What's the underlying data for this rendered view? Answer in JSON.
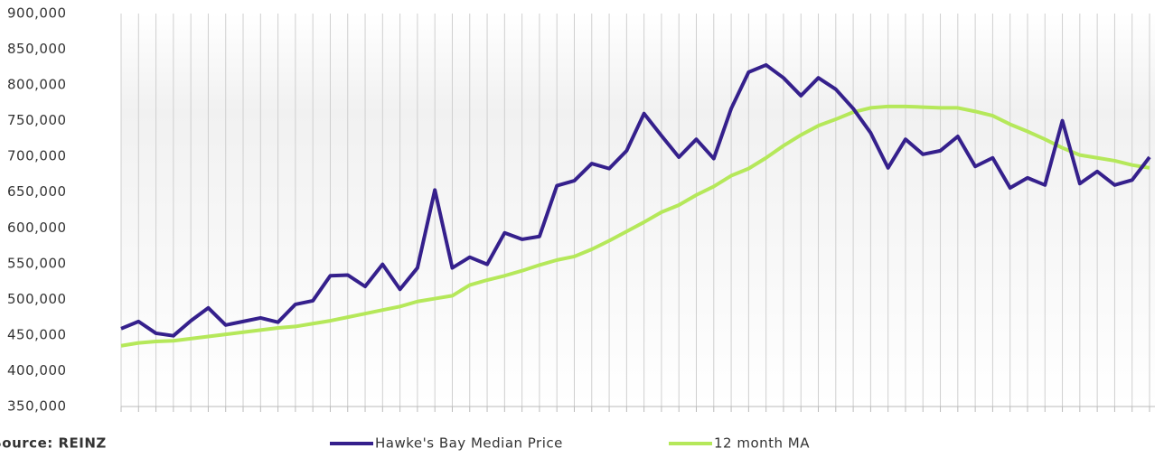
{
  "chart_data": {
    "type": "line",
    "categories": [
      null,
      null,
      null,
      null,
      null,
      null,
      null,
      null,
      null,
      null,
      null,
      null,
      null,
      null,
      null,
      null,
      null,
      null,
      null,
      null,
      null,
      null,
      null,
      null,
      null,
      null,
      null,
      null,
      null,
      null,
      null,
      null,
      null,
      null,
      null,
      null,
      null,
      null,
      null,
      null,
      null,
      null,
      null,
      null,
      null,
      null,
      null,
      null,
      null,
      null,
      null,
      null,
      null,
      null,
      null,
      null,
      null,
      null,
      null,
      null
    ],
    "series": [
      {
        "name": "Hawke's Bay Median Price",
        "color": "#35208c",
        "values": [
          459000,
          469000,
          452500,
          449000,
          470000,
          488000,
          464000,
          469000,
          474000,
          468000,
          493000,
          498000,
          533000,
          534000,
          518000,
          549000,
          514000,
          544000,
          653000,
          544000,
          559000,
          549000,
          593000,
          584000,
          588000,
          659000,
          666000,
          690000,
          683000,
          708000,
          760000,
          729000,
          699000,
          724000,
          697000,
          767000,
          818000,
          828000,
          810000,
          785000,
          810000,
          794000,
          767000,
          733000,
          684000,
          724000,
          703000,
          708000,
          728000,
          686000,
          698000,
          656000,
          670000,
          660000,
          750000,
          662000,
          679000,
          660000,
          667000,
          699000
        ]
      },
      {
        "name": "12 month MA",
        "color": "#b5e85a",
        "values": [
          435000,
          439000,
          441000,
          442000,
          445000,
          448000,
          451000,
          454000,
          457000,
          460000,
          462000,
          466000,
          470000,
          475000,
          480000,
          485000,
          490000,
          497000,
          501000,
          505000,
          520000,
          527000,
          533000,
          540000,
          548000,
          555000,
          560000,
          570000,
          582000,
          595000,
          608000,
          622000,
          632000,
          646000,
          658000,
          673000,
          683000,
          698000,
          715000,
          730000,
          743000,
          752000,
          762000,
          768000,
          770000,
          770000,
          769000,
          768000,
          768000,
          763000,
          757000,
          745000,
          735000,
          724000,
          712000,
          702000,
          698000,
          694000,
          688000,
          684000
        ]
      }
    ],
    "ylim": [
      350000,
      900000
    ],
    "yticks": [
      {
        "value": 350000,
        "label": "350,000"
      },
      {
        "value": 400000,
        "label": "400,000"
      },
      {
        "value": 450000,
        "label": "450,000"
      },
      {
        "value": 500000,
        "label": "500,000"
      },
      {
        "value": 550000,
        "label": "550,000"
      },
      {
        "value": 600000,
        "label": "600,000"
      },
      {
        "value": 650000,
        "label": "650,000"
      },
      {
        "value": 700000,
        "label": "700,000"
      },
      {
        "value": 750000,
        "label": "750,000"
      },
      {
        "value": 800000,
        "label": "800,000"
      },
      {
        "value": 850000,
        "label": "850,000"
      },
      {
        "value": 900000,
        "label": "900,000"
      }
    ],
    "source": "Source: REINZ"
  }
}
